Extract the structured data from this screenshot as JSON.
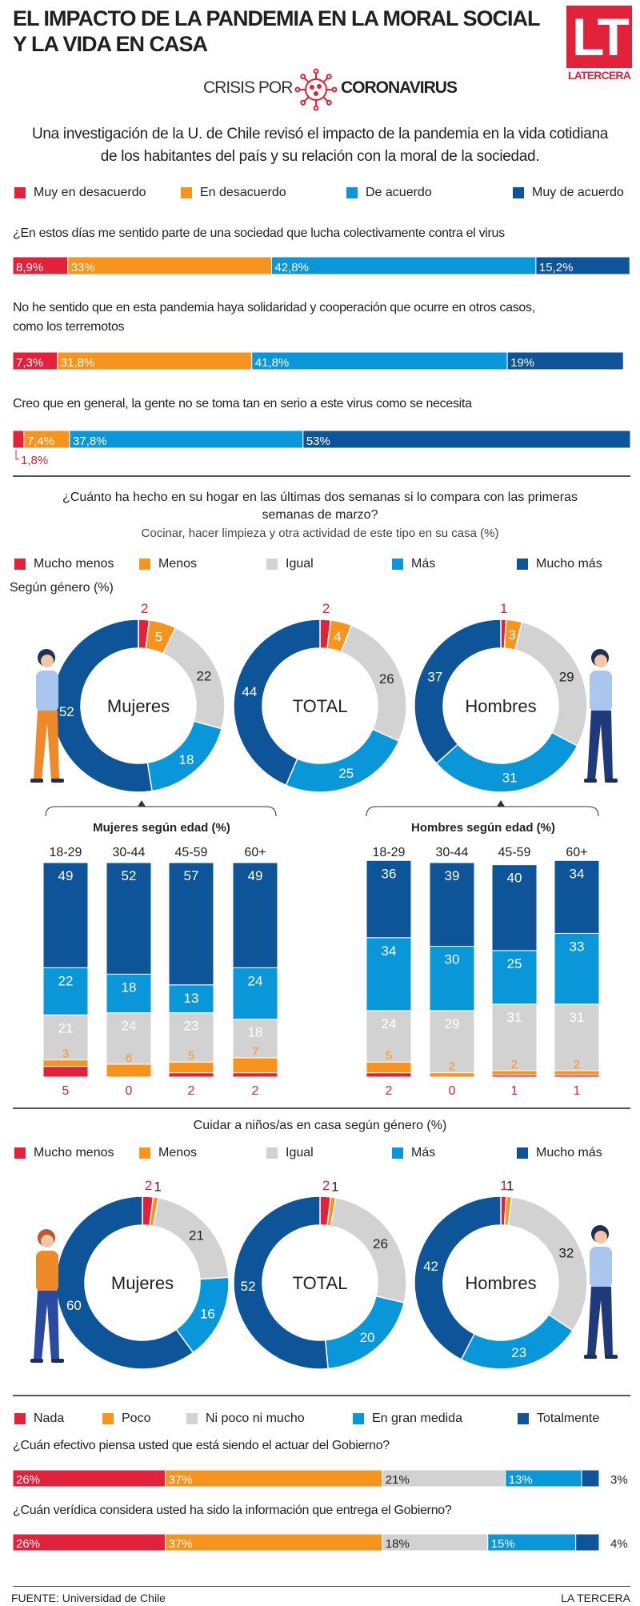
{
  "colors": {
    "red": "#e2213b",
    "orange": "#f7941d",
    "gray": "#d2d2d2",
    "light_blue": "#0a97d9",
    "dark_blue": "#0d5499"
  },
  "header": {
    "title_line1": "EL IMPACTO DE LA PANDEMIA EN LA MORAL SOCIAL",
    "title_line2": "Y LA VIDA EN CASA",
    "logo_letters": "LT",
    "logo_brand": "LATERCERA",
    "crisis_prefix": "CRISIS POR",
    "crisis_topic": "CORONAVIRUS",
    "virus_icon": "virus-icon"
  },
  "intro": {
    "line1": "Una investigación de la U. de Chile revisó el impacto de la pandemia en la vida cotidiana",
    "line2": "de los habitantes del país y su relación con la moral de la sociedad."
  },
  "morale": {
    "legend": [
      "Muy en desacuerdo",
      "En desacuerdo",
      "De acuerdo",
      "Muy de acuerdo"
    ],
    "questions": [
      {
        "text": "¿En estos días me sentido parte de una sociedad que lucha colectivamente contra el virus",
        "values": [
          8.9,
          33,
          42.8,
          15.2
        ],
        "labels": [
          "8,9%",
          "33%",
          "42,8%",
          "15,2%"
        ]
      },
      {
        "text": "No he sentido que en esta pandemia haya solidaridad y cooperación que ocurre en otros casos,",
        "text2": "como los terremotos",
        "values": [
          7.3,
          31.8,
          41.8,
          19
        ],
        "labels": [
          "7,3%",
          "31,8%",
          "41,8%",
          "19%"
        ]
      },
      {
        "text": "Creo que en general, la gente no se toma tan en serio a este virus como se necesita",
        "values": [
          1.8,
          7.4,
          37.8,
          53
        ],
        "labels": [
          "1,8%",
          "7,4%",
          "37,8%",
          "53%"
        ]
      }
    ]
  },
  "household": {
    "question_line1": "¿Cuánto ha hecho en su hogar en las últimas dos semanas si lo compara con las primeras",
    "question_line2": "semanas de marzo?",
    "subtitle": "Cocinar, hacer limpieza y otra actividad de este tipo en su casa (%)",
    "legend": [
      "Mucho menos",
      "Menos",
      "Igual",
      "Más",
      "Mucho más"
    ],
    "by_gender_label": "Según género (%)",
    "donuts": [
      {
        "label": "Mujeres",
        "values": [
          2,
          5,
          22,
          18,
          52
        ]
      },
      {
        "label": "TOTAL",
        "values": [
          2,
          4,
          26,
          25,
          44
        ]
      },
      {
        "label": "Hombres",
        "values": [
          1,
          3,
          29,
          31,
          37
        ]
      }
    ],
    "women_age": {
      "title": "Mujeres según edad (%)",
      "groups": [
        {
          "age": "18-29",
          "values": [
            5,
            3,
            21,
            22,
            49
          ]
        },
        {
          "age": "30-44",
          "values": [
            0,
            6,
            24,
            18,
            52
          ]
        },
        {
          "age": "45-59",
          "values": [
            2,
            5,
            23,
            13,
            57
          ]
        },
        {
          "age": "60+",
          "values": [
            2,
            7,
            18,
            24,
            49
          ]
        }
      ]
    },
    "men_age": {
      "title": "Hombres según edad (%)",
      "groups": [
        {
          "age": "18-29",
          "values": [
            2,
            5,
            24,
            34,
            36
          ]
        },
        {
          "age": "30-44",
          "values": [
            0,
            2,
            29,
            30,
            39
          ]
        },
        {
          "age": "45-59",
          "values": [
            1,
            2,
            31,
            25,
            40
          ]
        },
        {
          "age": "60+",
          "values": [
            1,
            2,
            31,
            33,
            34
          ]
        }
      ]
    }
  },
  "childcare": {
    "title": "Cuidar a niños/as en casa según género (%)",
    "legend": [
      "Mucho menos",
      "Menos",
      "Igual",
      "Más",
      "Mucho más"
    ],
    "donuts": [
      {
        "label": "Mujeres",
        "values": [
          2,
          1,
          21,
          16,
          60
        ]
      },
      {
        "label": "TOTAL",
        "values": [
          2,
          1,
          26,
          20,
          52
        ]
      },
      {
        "label": "Hombres",
        "values": [
          1,
          1,
          32,
          23,
          42
        ]
      }
    ]
  },
  "government": {
    "legend": [
      "Nada",
      "Poco",
      "Ni poco ni mucho",
      "En gran medida",
      "Totalmente"
    ],
    "questions": [
      {
        "text": "¿Cuán efectivo piensa usted que está siendo el actuar del Gobierno?",
        "values": [
          26,
          37,
          21,
          13,
          3
        ],
        "labels": [
          "26%",
          "37%",
          "21%",
          "13%",
          "3%"
        ]
      },
      {
        "text": "¿Cuán verídica considera usted ha sido la información que entrega el Gobierno?",
        "values": [
          26,
          37,
          18,
          15,
          4
        ],
        "labels": [
          "26%",
          "37%",
          "18%",
          "15%",
          "4%"
        ]
      }
    ]
  },
  "footer": {
    "source": "FUENTE: Universidad de Chile",
    "brand": "LA TERCERA"
  }
}
